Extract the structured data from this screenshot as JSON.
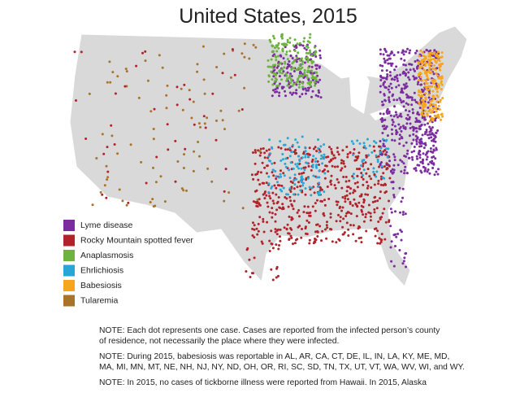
{
  "header": {
    "title": "United States, 2015"
  },
  "legend": [
    {
      "label": "Lyme disease",
      "color": "#7b2c9e"
    },
    {
      "label": "Rocky Mountain spotted fever",
      "color": "#b0232a"
    },
    {
      "label": "Anaplasmosis",
      "color": "#6db33f"
    },
    {
      "label": "Ehrlichiosis",
      "color": "#2aa6d6"
    },
    {
      "label": "Babesiosis",
      "color": "#f7a51c"
    },
    {
      "label": "Tularemia",
      "color": "#a9742a"
    }
  ],
  "notes": [
    [
      "NOTE: Each dot represents one case. Cases are reported from the infected person’s county",
      "of residence, not necessarily the place where they were infected."
    ],
    [
      "NOTE: During 2015, babesiosis was reportable in AL, AR, CA, CT, DE, IL, IN, LA, KY, ME, MD,",
      "MA, MI, MN, MT, NE, NH, NJ, NY, ND, OH, OR, RI, SC, SD, TN, TX, UT, VT, WA, WV, WI, and WY."
    ],
    [
      "NOTE: In 2015, no cases of tickborne illness were reported from Hawaii. In 2015, Alaska"
    ]
  ]
}
